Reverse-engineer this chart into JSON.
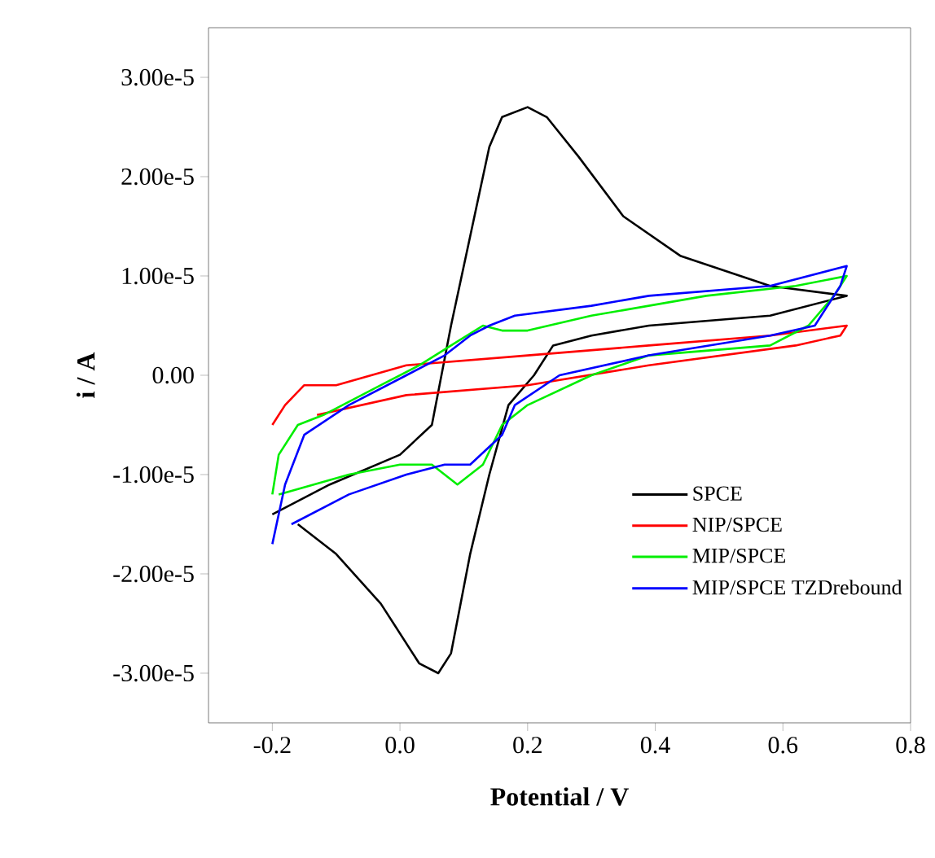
{
  "chart_data": {
    "type": "line",
    "xlabel": "Potential / V",
    "ylabel": "i / A",
    "xlim": [
      -0.3,
      0.8
    ],
    "ylim": [
      -3.5e-05,
      3.5e-05
    ],
    "xticks": [
      -0.2,
      {
        "value": 0,
        "label": "0.0"
      },
      0.2,
      0.4,
      0.6,
      0.8
    ],
    "yticks": [
      {
        "value": -3e-05,
        "label": "-3.00e-5"
      },
      {
        "value": -2e-05,
        "label": "-2.00e-5"
      },
      {
        "value": -1e-05,
        "label": "-1.00e-5"
      },
      {
        "value": 0,
        "label": "0.00"
      },
      {
        "value": 1e-05,
        "label": "1.00e-5"
      },
      {
        "value": 2e-05,
        "label": "2.00e-5"
      },
      {
        "value": 3e-05,
        "label": "3.00e-5"
      }
    ],
    "legend": "bottom right",
    "grid": false,
    "series": [
      {
        "name": "SPCE",
        "color": "#000000",
        "x": [
          -0.2,
          -0.11,
          0.0,
          0.05,
          0.08,
          0.11,
          0.14,
          0.16,
          0.2,
          0.23,
          0.28,
          0.35,
          0.44,
          0.58,
          0.7,
          0.58,
          0.39,
          0.3,
          0.24,
          0.21,
          0.17,
          0.14,
          0.11,
          0.08,
          0.06,
          0.03,
          -0.03,
          -0.1,
          -0.16
        ],
        "values": [
          -1.4e-05,
          -1.1e-05,
          -8e-06,
          -5e-06,
          5e-06,
          1.4e-05,
          2.3e-05,
          2.6e-05,
          2.7e-05,
          2.6e-05,
          2.2e-05,
          1.6e-05,
          1.2e-05,
          9e-06,
          8e-06,
          6e-06,
          5e-06,
          4e-06,
          3e-06,
          0.0,
          -3e-06,
          -1e-05,
          -1.8e-05,
          -2.8e-05,
          -3e-05,
          -2.9e-05,
          -2.3e-05,
          -1.8e-05,
          -1.5e-05
        ]
      },
      {
        "name": "NIP/SPCE",
        "color": "#ff0000",
        "x": [
          -0.2,
          -0.18,
          -0.15,
          -0.1,
          0.01,
          0.2,
          0.39,
          0.58,
          0.7,
          0.69,
          0.62,
          0.39,
          0.2,
          0.01,
          -0.13
        ],
        "values": [
          -5e-06,
          -3e-06,
          -1e-06,
          -1e-06,
          1e-06,
          2e-06,
          3e-06,
          4e-06,
          5e-06,
          4e-06,
          3e-06,
          1e-06,
          -1e-06,
          -2e-06,
          -4e-06
        ]
      },
      {
        "name": "MIP/SPCE",
        "color": "#00ee00",
        "x": [
          -0.2,
          -0.19,
          -0.16,
          -0.12,
          -0.03,
          0.03,
          0.08,
          0.13,
          0.16,
          0.2,
          0.3,
          0.48,
          0.62,
          0.7,
          0.68,
          0.64,
          0.58,
          0.39,
          0.3,
          0.2,
          0.16,
          0.13,
          0.09,
          0.05,
          0.0,
          -0.08,
          -0.19
        ],
        "values": [
          -1.2e-05,
          -8e-06,
          -5e-06,
          -4e-06,
          -1e-06,
          1e-06,
          3e-06,
          5e-06,
          4.5e-06,
          4.5e-06,
          6e-06,
          8e-06,
          9e-06,
          1e-05,
          8e-06,
          5e-06,
          3e-06,
          2e-06,
          0.0,
          -3e-06,
          -5e-06,
          -9e-06,
          -1.1e-05,
          -9e-06,
          -9e-06,
          -1e-05,
          -1.2e-05
        ]
      },
      {
        "name": "MIP/SPCE TZDrebound",
        "color": "#0000ff",
        "x": [
          -0.2,
          -0.18,
          -0.15,
          -0.08,
          0.01,
          0.07,
          0.11,
          0.14,
          0.18,
          0.3,
          0.39,
          0.58,
          0.7,
          0.69,
          0.65,
          0.58,
          0.39,
          0.25,
          0.18,
          0.16,
          0.11,
          0.07,
          0.01,
          -0.08,
          -0.17
        ],
        "values": [
          -1.7e-05,
          -1.1e-05,
          -6e-06,
          -3e-06,
          0.0,
          2e-06,
          4e-06,
          5e-06,
          6e-06,
          7e-06,
          8e-06,
          9e-06,
          1.1e-05,
          9e-06,
          5e-06,
          4e-06,
          2e-06,
          0.0,
          -3e-06,
          -6e-06,
          -9e-06,
          -9e-06,
          -1e-05,
          -1.2e-05,
          -1.5e-05
        ]
      }
    ]
  }
}
